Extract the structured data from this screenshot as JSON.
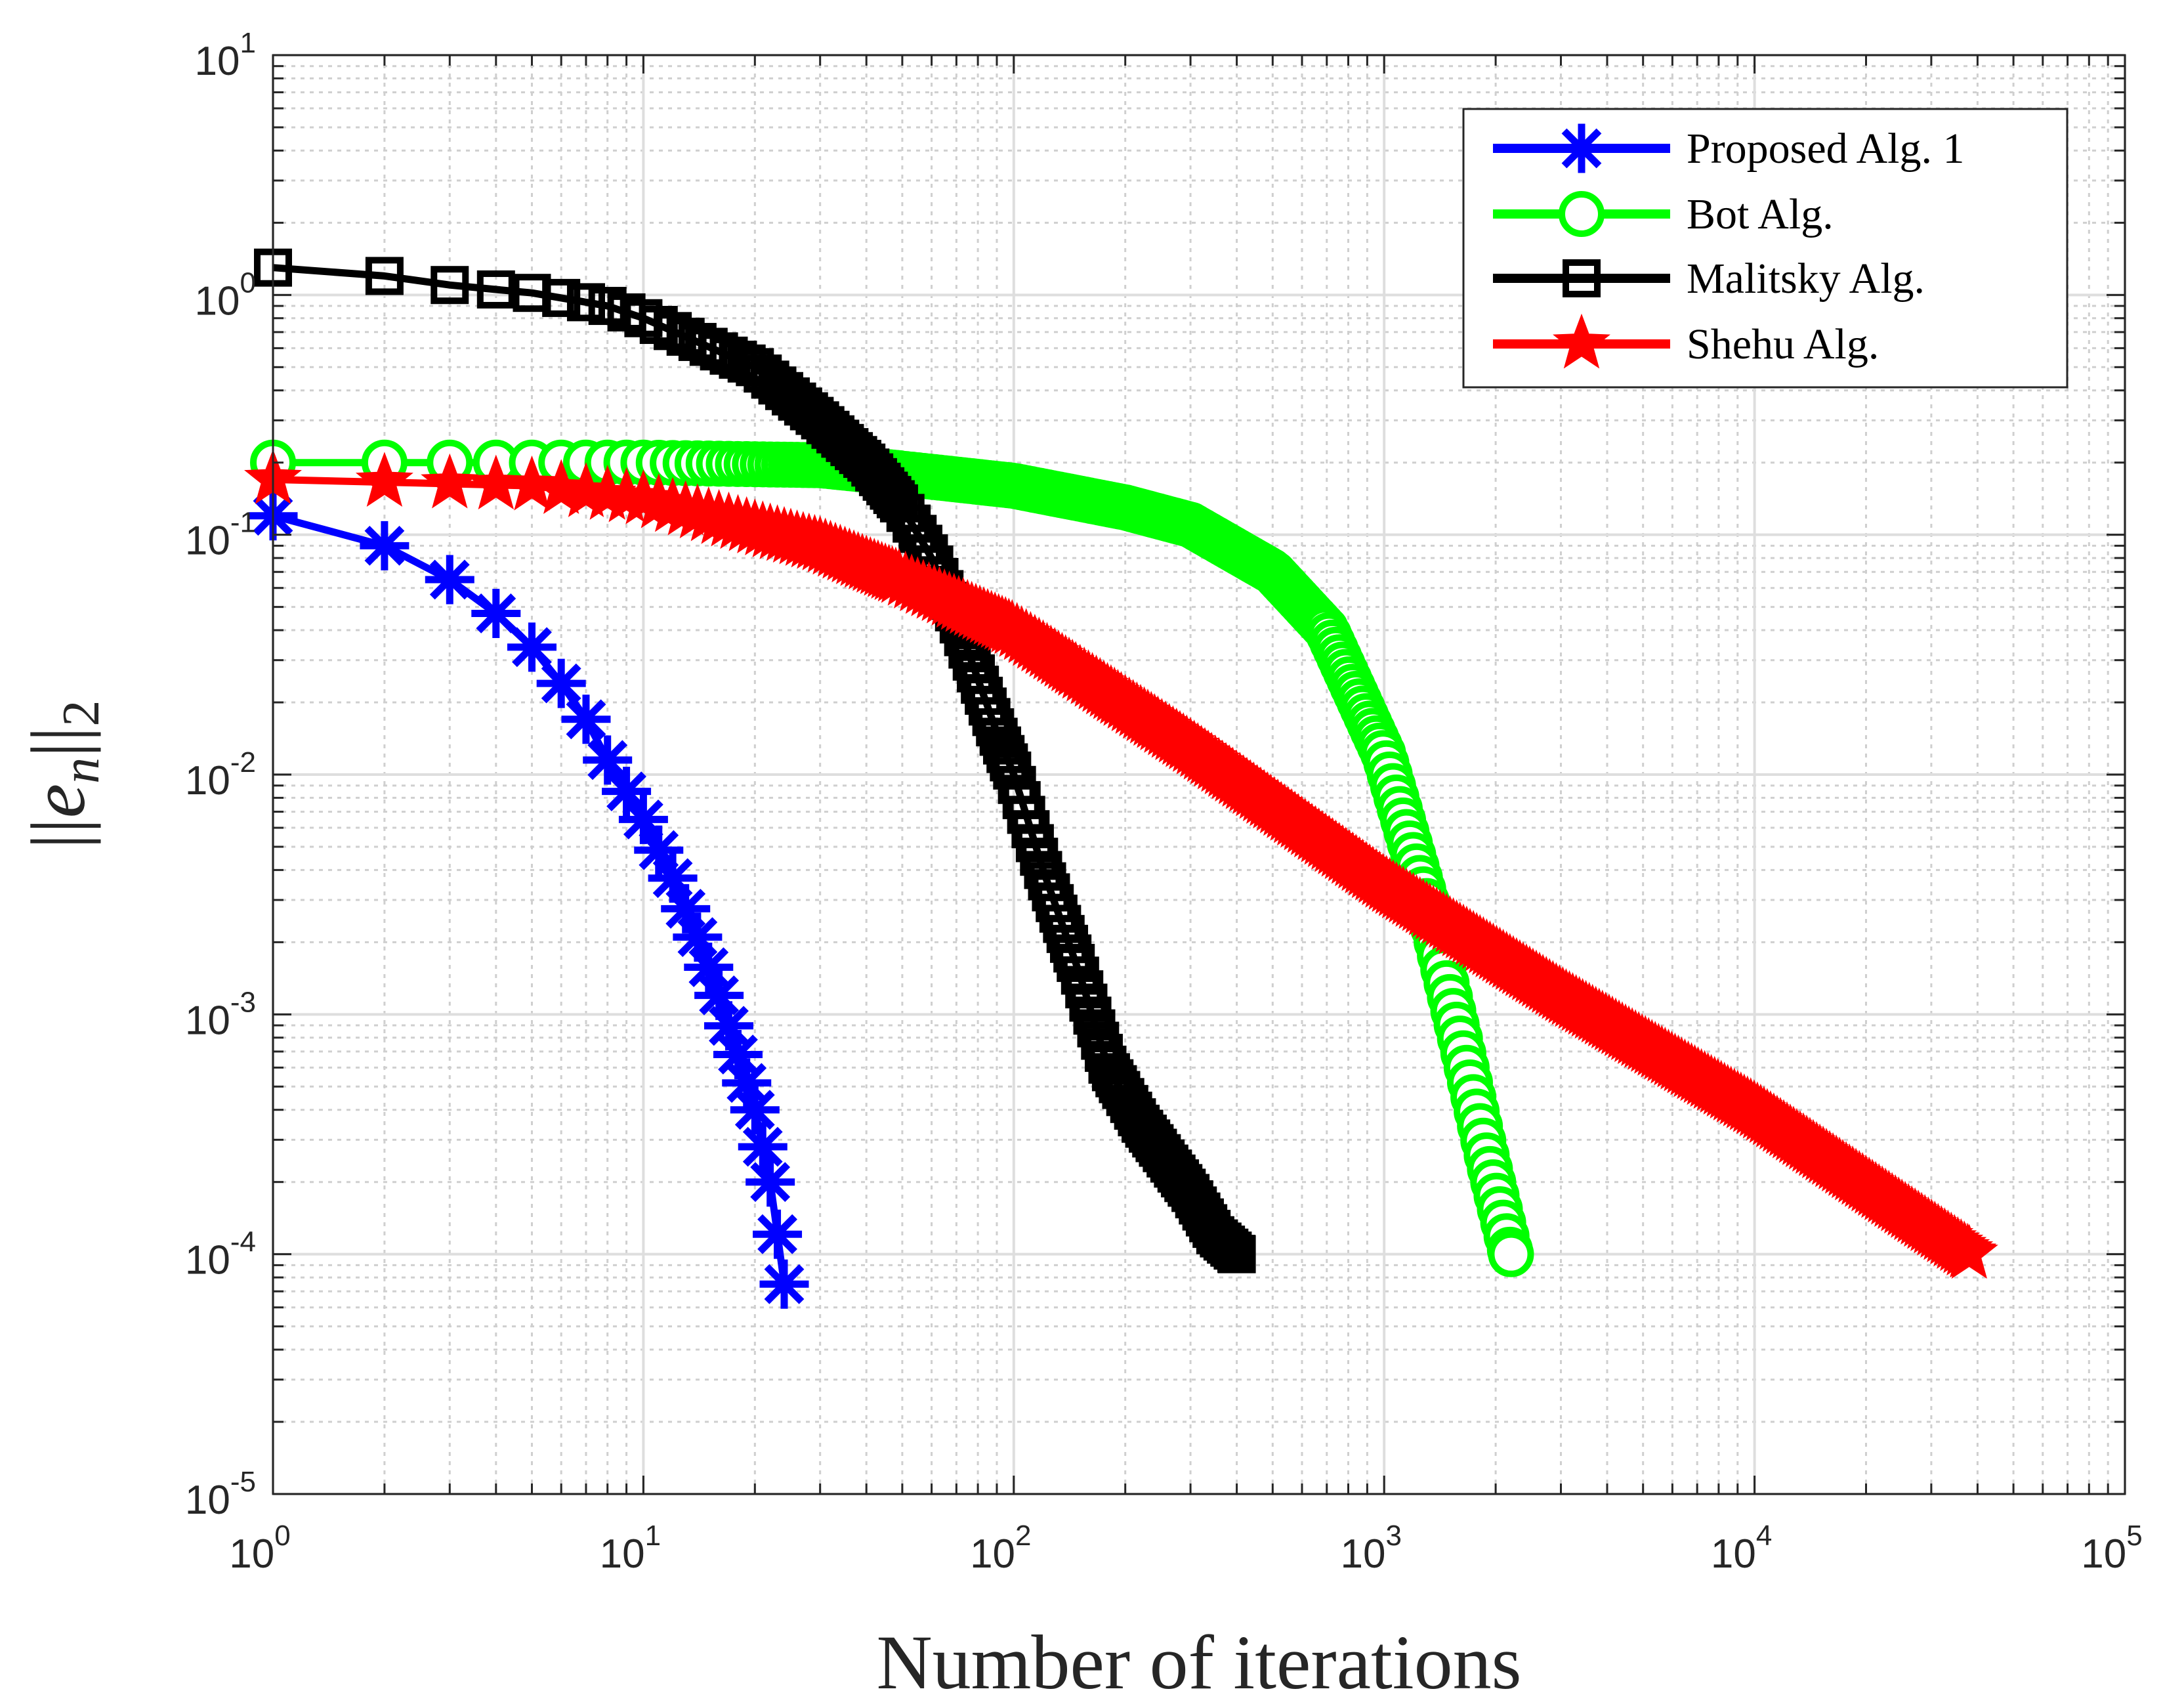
{
  "chart_data": {
    "type": "line",
    "scale": "log-log",
    "title": "",
    "xlabel": "Number of iterations",
    "ylabel": "||e_n||_2",
    "ylabel_parts": {
      "bars_left": "||",
      "base": "e",
      "sub": "n",
      "bars_right": "||",
      "norm": "2"
    },
    "xlim": [
      1,
      100000
    ],
    "ylim": [
      1e-05,
      10
    ],
    "grid": true,
    "minor_grid": true,
    "legend_position": "top-right",
    "x_ticks": [
      {
        "value": 1,
        "base": "10",
        "exp": "0"
      },
      {
        "value": 10,
        "base": "10",
        "exp": "1"
      },
      {
        "value": 100,
        "base": "10",
        "exp": "2"
      },
      {
        "value": 1000,
        "base": "10",
        "exp": "3"
      },
      {
        "value": 10000,
        "base": "10",
        "exp": "4"
      },
      {
        "value": 100000,
        "base": "10",
        "exp": "5"
      }
    ],
    "y_ticks": [
      {
        "value": 1e-05,
        "base": "10",
        "exp": "-5"
      },
      {
        "value": 0.0001,
        "base": "10",
        "exp": "-4"
      },
      {
        "value": 0.001,
        "base": "10",
        "exp": "-3"
      },
      {
        "value": 0.01,
        "base": "10",
        "exp": "-2"
      },
      {
        "value": 0.1,
        "base": "10",
        "exp": "-1"
      },
      {
        "value": 1,
        "base": "10",
        "exp": "0"
      },
      {
        "value": 10,
        "base": "10",
        "exp": "1"
      }
    ],
    "series": [
      {
        "name": "Proposed Alg. 1",
        "color": "#0000ff",
        "marker": "asterisk",
        "total_iterations": 24,
        "anchors": [
          [
            1,
            0.12
          ],
          [
            2,
            0.09
          ],
          [
            3,
            0.065
          ],
          [
            4,
            0.047
          ],
          [
            5,
            0.034
          ],
          [
            6,
            0.024
          ],
          [
            7,
            0.017
          ],
          [
            8,
            0.0115
          ],
          [
            10,
            0.0065
          ],
          [
            12,
            0.0037
          ],
          [
            14,
            0.0021
          ],
          [
            16,
            0.0012
          ],
          [
            18,
            0.00068
          ],
          [
            20,
            0.0004
          ],
          [
            22,
            0.0002
          ],
          [
            24,
            7.5e-05
          ]
        ]
      },
      {
        "name": "Bot Alg.",
        "color": "#00ff00",
        "marker": "circle",
        "total_iterations": 2200,
        "anchors": [
          [
            1,
            0.2
          ],
          [
            10,
            0.2
          ],
          [
            30,
            0.195
          ],
          [
            50,
            0.18
          ],
          [
            100,
            0.16
          ],
          [
            200,
            0.13
          ],
          [
            300,
            0.11
          ],
          [
            500,
            0.07
          ],
          [
            700,
            0.04
          ],
          [
            1000,
            0.012
          ],
          [
            1300,
            0.003
          ],
          [
            1600,
            0.0008
          ],
          [
            1900,
            0.00025
          ],
          [
            2200,
            0.0001
          ]
        ]
      },
      {
        "name": "Malitsky Alg.",
        "color": "#000000",
        "marker": "square",
        "total_iterations": 400,
        "anchors": [
          [
            1,
            1.3
          ],
          [
            2,
            1.2
          ],
          [
            3,
            1.1
          ],
          [
            5,
            1.02
          ],
          [
            8,
            0.9
          ],
          [
            10,
            0.8
          ],
          [
            20,
            0.5
          ],
          [
            30,
            0.3
          ],
          [
            40,
            0.2
          ],
          [
            50,
            0.13
          ],
          [
            60,
            0.08
          ],
          [
            70,
            0.045
          ],
          [
            80,
            0.025
          ],
          [
            90,
            0.015
          ],
          [
            100,
            0.01
          ],
          [
            120,
            0.004
          ],
          [
            150,
            0.0015
          ],
          [
            180,
            0.0006
          ],
          [
            220,
            0.00035
          ],
          [
            300,
            0.00018
          ],
          [
            350,
            0.00012
          ],
          [
            400,
            0.0001
          ]
        ]
      },
      {
        "name": "Shehu Alg.",
        "color": "#ff0000",
        "marker": "star",
        "total_iterations": 38000,
        "anchors": [
          [
            1,
            0.17
          ],
          [
            5,
            0.16
          ],
          [
            10,
            0.14
          ],
          [
            30,
            0.09
          ],
          [
            50,
            0.065
          ],
          [
            100,
            0.04
          ],
          [
            300,
            0.013
          ],
          [
            1000,
            0.0035
          ],
          [
            3000,
            0.0012
          ],
          [
            10000,
            0.0004
          ],
          [
            38000,
            0.0001
          ]
        ]
      }
    ]
  }
}
